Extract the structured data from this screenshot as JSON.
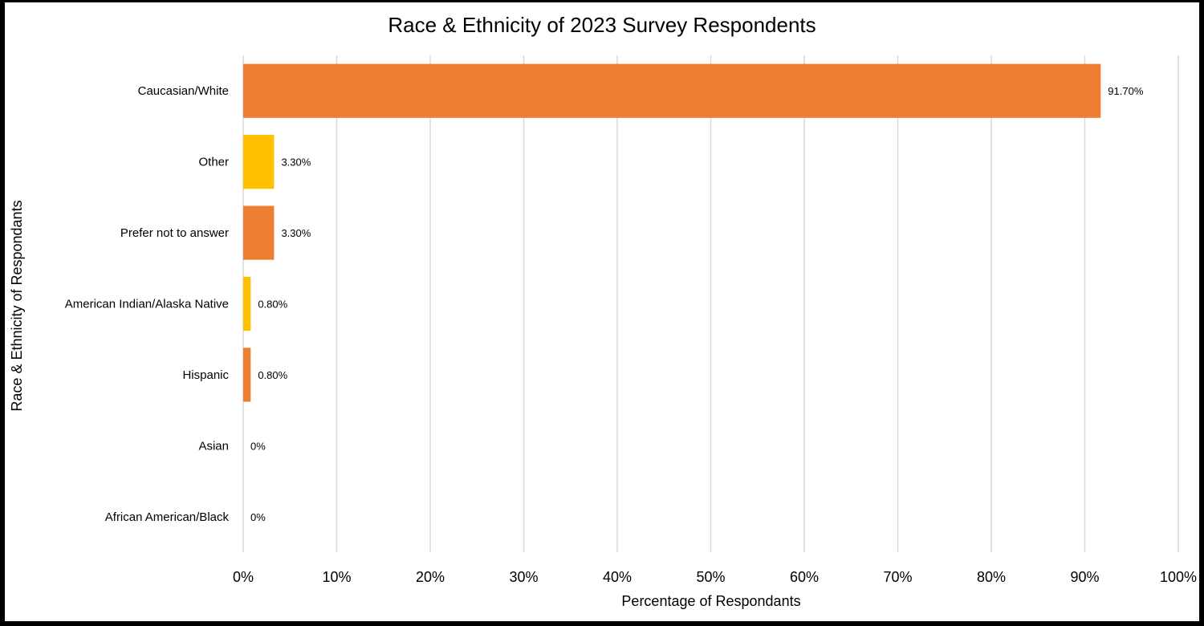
{
  "chart_data": {
    "type": "bar",
    "orientation": "horizontal",
    "title": "Race & Ethnicity of 2023 Survey Respondents",
    "xlabel": "Percentage of Respondants",
    "ylabel": "Race & Ethnicity of Respondants",
    "categories": [
      "Caucasian/White",
      "Other",
      "Prefer not to answer",
      "American Indian/Alaska Native",
      "Hispanic",
      "Asian",
      "African American/Black"
    ],
    "values": [
      91.7,
      3.3,
      3.3,
      0.8,
      0.8,
      0,
      0
    ],
    "data_labels": [
      "91.70%",
      "3.30%",
      "3.30%",
      "0.80%",
      "0.80%",
      "0%",
      "0%"
    ],
    "bar_colors": [
      "#ED7D31",
      "#FFC000",
      "#ED7D31",
      "#FFC000",
      "#ED7D31",
      "#FFC000",
      "#ED7D31"
    ],
    "xlim": [
      0,
      100
    ],
    "xticks": [
      0,
      10,
      20,
      30,
      40,
      50,
      60,
      70,
      80,
      90,
      100
    ],
    "xtick_labels": [
      "0%",
      "10%",
      "20%",
      "30%",
      "40%",
      "50%",
      "60%",
      "70%",
      "80%",
      "90%",
      "100%"
    ],
    "grid": "vertical",
    "grid_color": "#D9D9D9",
    "legend": "none"
  }
}
